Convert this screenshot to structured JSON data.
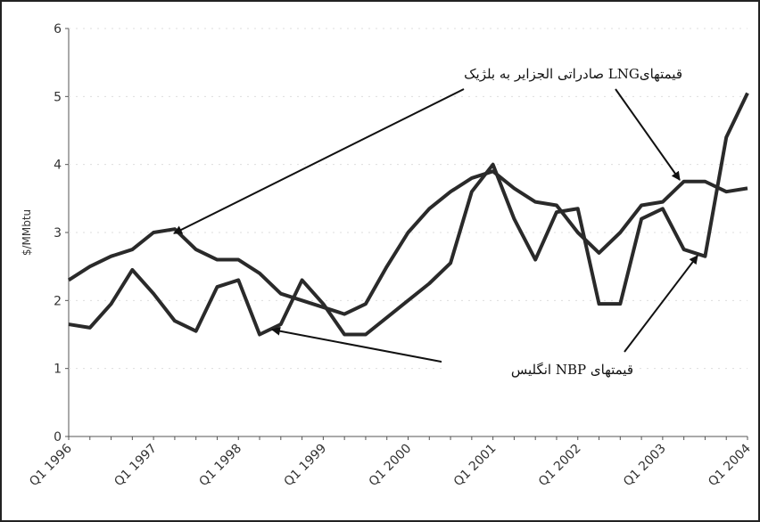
{
  "chart_data": {
    "type": "line",
    "y_label": "$/MMbtu",
    "categories": [
      "Q1 1996",
      null,
      null,
      null,
      "Q1 1997",
      null,
      null,
      null,
      "Q1 1998",
      null,
      null,
      null,
      "Q1 1999",
      null,
      null,
      null,
      "Q1 2000",
      null,
      null,
      null,
      "Q1 2001",
      null,
      null,
      null,
      "Q1 2002",
      null,
      null,
      null,
      "Q1 2003",
      null,
      null,
      null,
      "Q1 2004"
    ],
    "series": [
      {
        "name": "قیمتهایLNG صادراتی الجزایر به بلژیک",
        "color": "#2a2a2a",
        "values": [
          2.3,
          2.5,
          2.65,
          2.75,
          3.0,
          3.05,
          2.75,
          2.6,
          2.6,
          2.4,
          2.1,
          2.0,
          1.9,
          1.8,
          1.95,
          2.5,
          3.0,
          3.35,
          3.6,
          3.8,
          3.9,
          3.65,
          3.45,
          3.4,
          3.0,
          2.7,
          3.0,
          3.4,
          3.45,
          3.75,
          3.75,
          3.6,
          3.65
        ]
      },
      {
        "name": "قیمتهای NBP انگلیس",
        "color": "#2a2a2a",
        "values": [
          1.65,
          1.6,
          1.95,
          2.45,
          2.1,
          1.7,
          1.55,
          2.2,
          2.3,
          1.5,
          1.65,
          2.3,
          1.95,
          1.5,
          1.5,
          1.75,
          2.0,
          2.25,
          2.55,
          3.6,
          4.0,
          3.2,
          2.6,
          3.3,
          3.35,
          1.95,
          1.95,
          3.2,
          3.35,
          2.75,
          2.65,
          4.4,
          5.05
        ]
      }
    ],
    "ylim": [
      0,
      6
    ],
    "yticks": [
      0,
      1,
      2,
      3,
      4,
      5,
      6
    ],
    "grid": true
  }
}
